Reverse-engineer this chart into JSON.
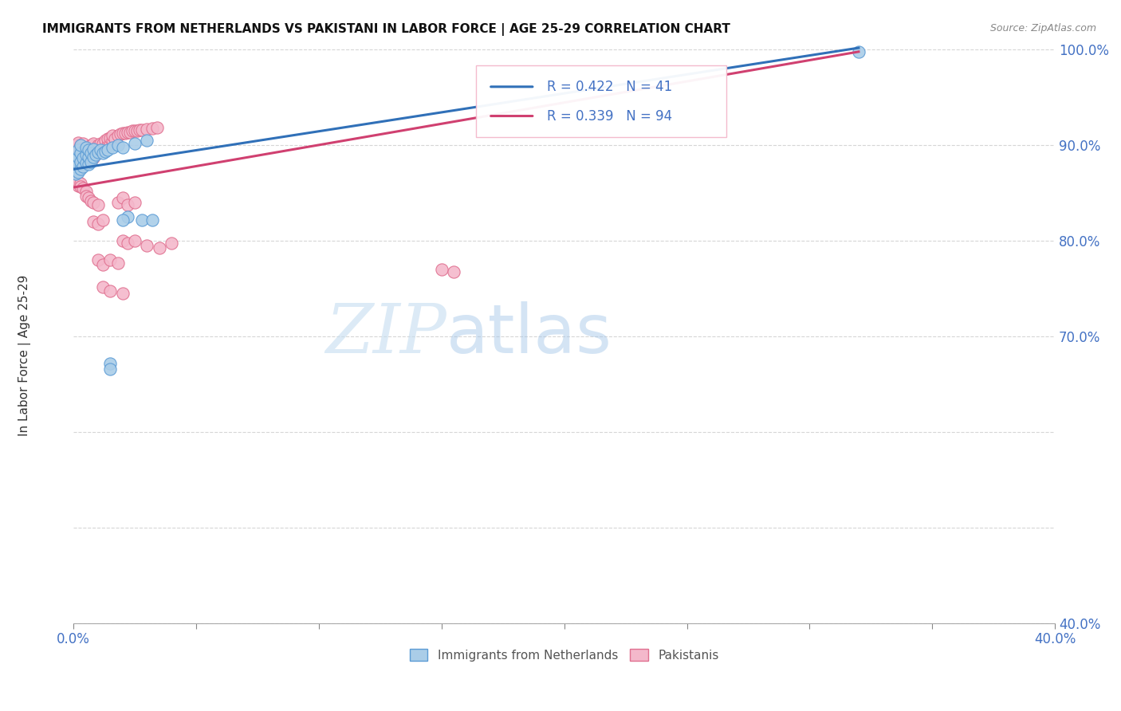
{
  "title": "IMMIGRANTS FROM NETHERLANDS VS PAKISTANI IN LABOR FORCE | AGE 25-29 CORRELATION CHART",
  "source": "Source: ZipAtlas.com",
  "ylabel": "In Labor Force | Age 25-29",
  "xlim": [
    0.0,
    0.4
  ],
  "ylim": [
    0.4,
    1.005
  ],
  "xtick_positions": [
    0.0,
    0.05,
    0.1,
    0.15,
    0.2,
    0.25,
    0.3,
    0.35,
    0.4
  ],
  "xtick_labels": [
    "0.0%",
    "",
    "",
    "",
    "",
    "",
    "",
    "",
    "40.0%"
  ],
  "ytick_positions": [
    0.4,
    0.5,
    0.6,
    0.7,
    0.8,
    0.9,
    1.0
  ],
  "ytick_labels": [
    "40.0%",
    "",
    "",
    "70.0%",
    "80.0%",
    "90.0%",
    "100.0%"
  ],
  "legend_blue_label": "Immigrants from Netherlands",
  "legend_pink_label": "Pakistanis",
  "r_blue": 0.422,
  "n_blue": 41,
  "r_pink": 0.339,
  "n_pink": 94,
  "color_blue_fill": "#aacde8",
  "color_blue_edge": "#5b9bd5",
  "color_pink_fill": "#f4b8cb",
  "color_pink_edge": "#e07090",
  "color_line_blue": "#3070b8",
  "color_line_pink": "#d04070",
  "color_axis_ticks": "#4472c4",
  "color_grid": "#cccccc",
  "background": "#ffffff",
  "watermark_zip": "ZIP",
  "watermark_atlas": "atlas",
  "blue_line_x0": 0.0,
  "blue_line_y0": 0.875,
  "blue_line_x1": 0.32,
  "blue_line_y1": 1.002,
  "pink_line_x0": 0.0,
  "pink_line_y0": 0.856,
  "pink_line_x1": 0.32,
  "pink_line_y1": 0.998,
  "blue_x": [
    0.001,
    0.001,
    0.001,
    0.002,
    0.002,
    0.002,
    0.002,
    0.003,
    0.003,
    0.003,
    0.003,
    0.004,
    0.004,
    0.005,
    0.005,
    0.005,
    0.006,
    0.006,
    0.006,
    0.007,
    0.007,
    0.008,
    0.008,
    0.009,
    0.01,
    0.011,
    0.012,
    0.013,
    0.014,
    0.016,
    0.018,
    0.02,
    0.025,
    0.03,
    0.022,
    0.028,
    0.032,
    0.02,
    0.015,
    0.015,
    0.32
  ],
  "blue_y": [
    0.87,
    0.878,
    0.885,
    0.872,
    0.88,
    0.888,
    0.895,
    0.875,
    0.883,
    0.892,
    0.9,
    0.878,
    0.887,
    0.882,
    0.89,
    0.898,
    0.88,
    0.888,
    0.895,
    0.883,
    0.892,
    0.888,
    0.896,
    0.89,
    0.893,
    0.895,
    0.892,
    0.894,
    0.895,
    0.898,
    0.9,
    0.898,
    0.902,
    0.905,
    0.825,
    0.822,
    0.822,
    0.822,
    0.672,
    0.666,
    0.998
  ],
  "pink_x": [
    0.001,
    0.001,
    0.001,
    0.001,
    0.001,
    0.002,
    0.002,
    0.002,
    0.002,
    0.002,
    0.003,
    0.003,
    0.003,
    0.003,
    0.004,
    0.004,
    0.004,
    0.004,
    0.005,
    0.005,
    0.005,
    0.006,
    0.006,
    0.006,
    0.007,
    0.007,
    0.007,
    0.008,
    0.008,
    0.008,
    0.009,
    0.009,
    0.01,
    0.01,
    0.011,
    0.011,
    0.012,
    0.012,
    0.013,
    0.013,
    0.014,
    0.014,
    0.015,
    0.015,
    0.016,
    0.016,
    0.017,
    0.018,
    0.019,
    0.02,
    0.021,
    0.022,
    0.023,
    0.024,
    0.025,
    0.026,
    0.027,
    0.028,
    0.03,
    0.032,
    0.034,
    0.018,
    0.02,
    0.022,
    0.025,
    0.008,
    0.01,
    0.012,
    0.02,
    0.022,
    0.025,
    0.03,
    0.035,
    0.04,
    0.15,
    0.155,
    0.01,
    0.012,
    0.015,
    0.018,
    0.002,
    0.002,
    0.003,
    0.003,
    0.004,
    0.005,
    0.005,
    0.006,
    0.007,
    0.008,
    0.01,
    0.012,
    0.015,
    0.02
  ],
  "pink_y": [
    0.873,
    0.88,
    0.888,
    0.895,
    0.9,
    0.875,
    0.882,
    0.89,
    0.897,
    0.903,
    0.878,
    0.885,
    0.893,
    0.9,
    0.88,
    0.887,
    0.895,
    0.902,
    0.882,
    0.89,
    0.897,
    0.883,
    0.891,
    0.898,
    0.885,
    0.893,
    0.9,
    0.887,
    0.895,
    0.902,
    0.89,
    0.897,
    0.893,
    0.9,
    0.895,
    0.902,
    0.895,
    0.902,
    0.898,
    0.905,
    0.9,
    0.907,
    0.902,
    0.908,
    0.905,
    0.91,
    0.907,
    0.91,
    0.912,
    0.913,
    0.913,
    0.914,
    0.914,
    0.915,
    0.915,
    0.915,
    0.916,
    0.916,
    0.917,
    0.918,
    0.919,
    0.84,
    0.845,
    0.838,
    0.84,
    0.82,
    0.818,
    0.822,
    0.8,
    0.798,
    0.8,
    0.795,
    0.793,
    0.798,
    0.77,
    0.768,
    0.78,
    0.775,
    0.78,
    0.777,
    0.858,
    0.862,
    0.86,
    0.857,
    0.855,
    0.852,
    0.847,
    0.845,
    0.842,
    0.84,
    0.838,
    0.752,
    0.748,
    0.745
  ]
}
